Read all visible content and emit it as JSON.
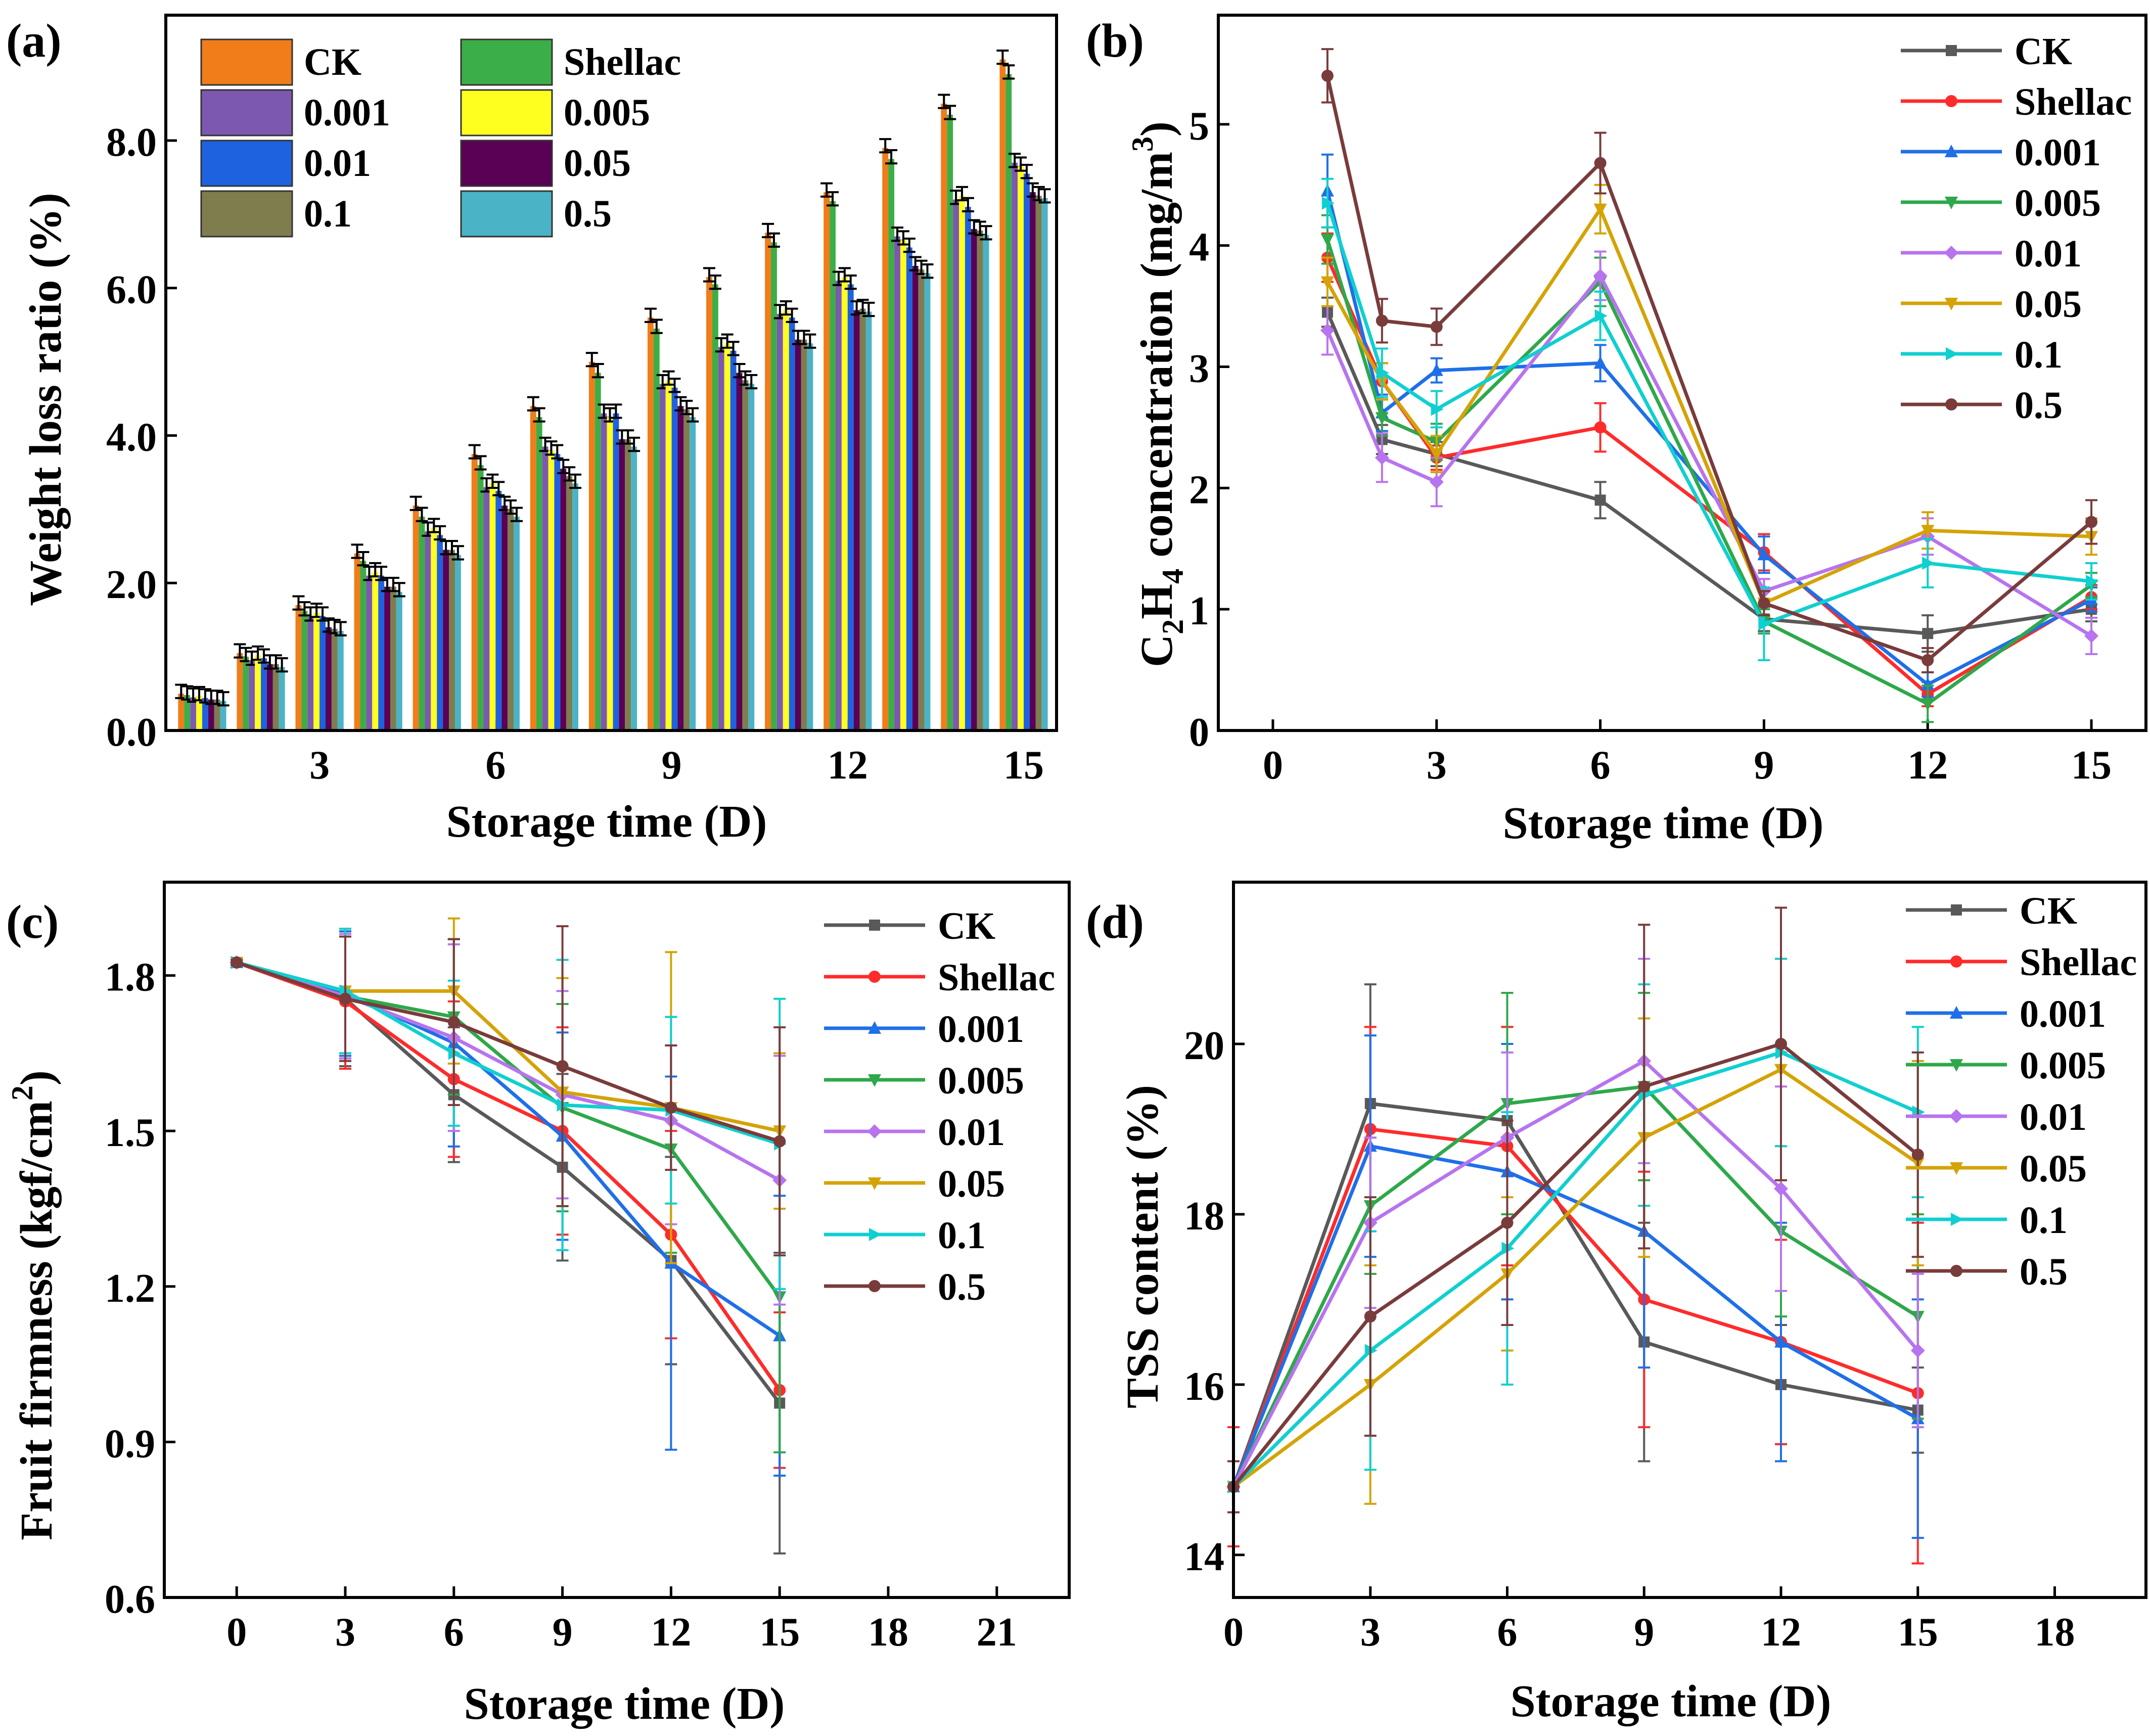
{
  "figure": {
    "panel_labels": [
      "(a)",
      "(b)",
      "(c)",
      "(d)"
    ]
  },
  "colors": {
    "CK": "#595959",
    "Shellac": "#ff2b2b",
    "0.001": "#1f6fe8",
    "0.005": "#2ea84a",
    "0.01": "#b774ee",
    "0.05": "#d4a306",
    "0.1": "#10cfd0",
    "0.5": "#7a3b3b"
  },
  "bar_colors": {
    "CK": "#f07c1a",
    "Shellac": "#3cae47",
    "0.001": "#7d58b0",
    "0.005": "#ffff1f",
    "0.01": "#1f62e0",
    "0.05": "#5a0055",
    "0.1": "#7f7d4e",
    "0.5": "#4bb3c6"
  },
  "chart_data": [
    {
      "panel": "(a)",
      "type": "bar",
      "title": "",
      "xlabel": "Storage time (D)",
      "ylabel": "Weight loss ratio (%)",
      "ylim": [
        0,
        9.7
      ],
      "yticks": [
        "0.0",
        "2.0",
        "4.0",
        "6.0",
        "8.0"
      ],
      "ytick_values": [
        0,
        2,
        4,
        6,
        8
      ],
      "xticks": [
        "3",
        "6",
        "9",
        "12",
        "15"
      ],
      "xtick_values": [
        3,
        6,
        9,
        12,
        15
      ],
      "categories": [
        "1",
        "2",
        "3",
        "4",
        "5",
        "6",
        "7",
        "8",
        "9",
        "10",
        "11",
        "12",
        "13",
        "14",
        "15"
      ],
      "legend_columns": [
        [
          "CK",
          "0.001",
          "0.01",
          "0.1"
        ],
        [
          "Shellac",
          "0.005",
          "0.05",
          "0.5"
        ]
      ],
      "error": 0.12,
      "series": [
        {
          "name": "CK",
          "values": [
            0.5,
            1.05,
            1.7,
            2.4,
            3.05,
            3.75,
            4.4,
            5.0,
            5.6,
            6.15,
            6.75,
            7.3,
            7.9,
            8.5,
            9.1
          ]
        },
        {
          "name": "Shellac",
          "values": [
            0.48,
            1.0,
            1.62,
            2.3,
            2.9,
            3.6,
            4.25,
            4.85,
            5.45,
            6.05,
            6.62,
            7.18,
            7.75,
            8.35,
            8.9
          ]
        },
        {
          "name": "0.001",
          "values": [
            0.45,
            0.95,
            1.55,
            2.1,
            2.7,
            3.3,
            3.85,
            4.3,
            4.7,
            5.2,
            5.65,
            6.1,
            6.7,
            7.2,
            7.7
          ]
        },
        {
          "name": "0.005",
          "values": [
            0.47,
            1.02,
            1.6,
            2.15,
            2.75,
            3.35,
            3.8,
            4.25,
            4.75,
            5.25,
            5.7,
            6.15,
            6.65,
            7.25,
            7.65
          ]
        },
        {
          "name": "0.01",
          "values": [
            0.44,
            0.98,
            1.55,
            2.1,
            2.65,
            3.25,
            3.75,
            4.3,
            4.65,
            5.15,
            5.6,
            6.05,
            6.55,
            7.1,
            7.55
          ]
        },
        {
          "name": "0.05",
          "values": [
            0.42,
            0.9,
            1.4,
            1.95,
            2.45,
            3.05,
            3.55,
            3.95,
            4.4,
            4.85,
            5.3,
            5.7,
            6.3,
            6.8,
            7.3
          ]
        },
        {
          "name": "0.1",
          "values": [
            0.42,
            0.9,
            1.38,
            1.95,
            2.45,
            3.0,
            3.45,
            3.95,
            4.35,
            4.75,
            5.3,
            5.72,
            6.25,
            6.78,
            7.25
          ]
        },
        {
          "name": "0.5",
          "values": [
            0.4,
            0.86,
            1.35,
            1.88,
            2.38,
            2.9,
            3.35,
            3.85,
            4.25,
            4.7,
            5.25,
            5.68,
            6.2,
            6.72,
            7.22
          ]
        }
      ]
    },
    {
      "panel": "(b)",
      "type": "line",
      "xlabel": "Storage time (D)",
      "ylabel": "C2H4 concentration (mg/m3)",
      "xlim": [
        -1,
        16
      ],
      "ylim": [
        0,
        5.9
      ],
      "xticks": [
        "0",
        "3",
        "6",
        "9",
        "12",
        "15"
      ],
      "xtick_values": [
        0,
        3,
        6,
        9,
        12,
        15
      ],
      "yticks": [
        "0",
        "1",
        "2",
        "3",
        "4",
        "5"
      ],
      "ytick_values": [
        0,
        1,
        2,
        3,
        4,
        5
      ],
      "x": [
        1,
        2,
        3,
        6,
        9,
        12,
        15
      ],
      "series": [
        {
          "name": "CK",
          "values": [
            3.45,
            2.4,
            2.28,
            1.9,
            0.92,
            0.8,
            1.0
          ],
          "errors": [
            0.12,
            0.12,
            0.1,
            0.15,
            0.1,
            0.15,
            0.1
          ]
        },
        {
          "name": "Shellac",
          "values": [
            3.9,
            2.88,
            2.25,
            2.5,
            1.47,
            0.3,
            1.1
          ],
          "errors": [
            0.2,
            0.15,
            0.1,
            0.2,
            0.15,
            0.1,
            0.1
          ]
        },
        {
          "name": "0.001",
          "values": [
            4.45,
            2.62,
            2.97,
            3.03,
            1.45,
            0.38,
            1.08
          ],
          "errors": [
            0.3,
            0.15,
            0.1,
            0.15,
            0.15,
            0.1,
            0.1
          ]
        },
        {
          "name": "0.005",
          "values": [
            4.05,
            2.58,
            2.38,
            3.7,
            0.9,
            0.22,
            1.2
          ],
          "errors": [
            0.2,
            0.15,
            0.15,
            0.2,
            0.1,
            0.15,
            0.1
          ]
        },
        {
          "name": "0.01",
          "values": [
            3.3,
            2.25,
            2.05,
            3.75,
            1.15,
            1.6,
            0.78
          ],
          "errors": [
            0.2,
            0.2,
            0.2,
            0.2,
            0.1,
            0.15,
            0.15
          ]
        },
        {
          "name": "0.05",
          "values": [
            3.7,
            2.88,
            2.28,
            4.3,
            1.05,
            1.65,
            1.6
          ],
          "errors": [
            0.2,
            0.15,
            0.15,
            0.2,
            0.1,
            0.15,
            0.15
          ]
        },
        {
          "name": "0.1",
          "values": [
            4.35,
            2.95,
            2.65,
            3.42,
            0.88,
            1.38,
            1.23
          ],
          "errors": [
            0.2,
            0.2,
            0.15,
            0.2,
            0.3,
            0.2,
            0.15
          ]
        },
        {
          "name": "0.5",
          "values": [
            5.4,
            3.38,
            3.33,
            4.68,
            1.05,
            0.58,
            1.72
          ],
          "errors": [
            0.22,
            0.18,
            0.15,
            0.25,
            0.1,
            0.1,
            0.18
          ]
        }
      ],
      "legend": [
        "CK",
        "Shellac",
        "0.001",
        "0.005",
        "0.01",
        "0.05",
        "0.1",
        "0.5"
      ]
    },
    {
      "panel": "(c)",
      "type": "line",
      "xlabel": "Storage time (D)",
      "ylabel": "Fruit firmness (kgf/cm2)",
      "xlim": [
        -2,
        23
      ],
      "ylim": [
        0.6,
        1.98
      ],
      "xticks": [
        "0",
        "3",
        "6",
        "9",
        "12",
        "15",
        "18",
        "21"
      ],
      "xtick_values": [
        0,
        3,
        6,
        9,
        12,
        15,
        18,
        21
      ],
      "yticks": [
        "0.6",
        "0.9",
        "1.2",
        "1.5",
        "1.8"
      ],
      "ytick_values": [
        0.6,
        0.9,
        1.2,
        1.5,
        1.8
      ],
      "x": [
        0,
        3,
        6,
        9,
        12,
        15
      ],
      "series": [
        {
          "name": "CK",
          "values": [
            1.825,
            1.755,
            1.57,
            1.43,
            1.25,
            0.975
          ],
          "errors": [
            0.005,
            0.13,
            0.13,
            0.18,
            0.2,
            0.29
          ]
        },
        {
          "name": "Shellac",
          "values": [
            1.825,
            1.75,
            1.6,
            1.5,
            1.3,
            1.0
          ],
          "errors": [
            0.005,
            0.13,
            0.15,
            0.2,
            0.2,
            0.15
          ]
        },
        {
          "name": "0.001",
          "values": [
            1.825,
            1.765,
            1.67,
            1.49,
            1.245,
            1.105
          ],
          "errors": [
            0.005,
            0.12,
            0.2,
            0.2,
            0.36,
            0.27
          ]
        },
        {
          "name": "0.005",
          "values": [
            1.825,
            1.76,
            1.72,
            1.545,
            1.465,
            1.18
          ],
          "errors": [
            0.005,
            0.12,
            0.15,
            0.2,
            0.2,
            0.3
          ]
        },
        {
          "name": "0.01",
          "values": [
            1.825,
            1.76,
            1.68,
            1.57,
            1.52,
            1.405
          ],
          "errors": [
            0.005,
            0.12,
            0.18,
            0.2,
            0.2,
            0.24
          ]
        },
        {
          "name": "0.05",
          "values": [
            1.825,
            1.77,
            1.77,
            1.575,
            1.545,
            1.5
          ],
          "errors": [
            0.005,
            0.12,
            0.14,
            0.22,
            0.3,
            0.15
          ]
        },
        {
          "name": "0.1",
          "values": [
            1.825,
            1.77,
            1.65,
            1.55,
            1.54,
            1.475
          ],
          "errors": [
            0.005,
            0.12,
            0.14,
            0.28,
            0.18,
            0.28
          ]
        },
        {
          "name": "0.5",
          "values": [
            1.825,
            1.755,
            1.71,
            1.625,
            1.545,
            1.48
          ],
          "errors": [
            0.005,
            0.12,
            0.16,
            0.27,
            0.12,
            0.22
          ]
        }
      ],
      "legend": [
        "CK",
        "Shellac",
        "0.001",
        "0.005",
        "0.01",
        "0.05",
        "0.1",
        "0.5"
      ]
    },
    {
      "panel": "(d)",
      "type": "line",
      "xlabel": "Storage time (D)",
      "ylabel": "TSS content (%)",
      "xlim": [
        0,
        20
      ],
      "ylim": [
        13.5,
        21.9
      ],
      "xticks": [
        "0",
        "3",
        "6",
        "9",
        "12",
        "15",
        "18"
      ],
      "xtick_values": [
        0,
        3,
        6,
        9,
        12,
        15,
        18
      ],
      "yticks": [
        "14",
        "16",
        "18",
        "20"
      ],
      "ytick_values": [
        14,
        16,
        18,
        20
      ],
      "x": [
        0,
        3,
        6,
        9,
        12,
        15
      ],
      "series": [
        {
          "name": "CK",
          "values": [
            14.8,
            19.3,
            19.1,
            16.5,
            16.0,
            15.7
          ],
          "errors": [
            0.3,
            1.4,
            1.1,
            1.4,
            0.7,
            0.5
          ]
        },
        {
          "name": "Shellac",
          "values": [
            14.8,
            19.0,
            18.8,
            17.0,
            16.5,
            15.9
          ],
          "errors": [
            0.7,
            1.2,
            1.4,
            1.5,
            1.2,
            2.0
          ]
        },
        {
          "name": "0.001",
          "values": [
            14.8,
            18.8,
            18.5,
            17.8,
            16.5,
            15.6
          ],
          "errors": [
            0.3,
            1.3,
            1.5,
            1.6,
            1.4,
            1.4
          ]
        },
        {
          "name": "0.005",
          "values": [
            14.8,
            18.1,
            19.3,
            19.5,
            17.8,
            16.8
          ],
          "errors": [
            0.3,
            0.8,
            1.3,
            1.1,
            1.0,
            1.2
          ]
        },
        {
          "name": "0.01",
          "values": [
            14.8,
            17.9,
            18.9,
            19.8,
            18.3,
            16.4
          ],
          "errors": [
            0.3,
            1.0,
            1.0,
            1.2,
            1.2,
            0.9
          ]
        },
        {
          "name": "0.05",
          "values": [
            14.8,
            16.0,
            17.3,
            18.9,
            19.7,
            18.6
          ],
          "errors": [
            0.3,
            1.4,
            0.9,
            1.4,
            1.3,
            1.2
          ]
        },
        {
          "name": "0.1",
          "values": [
            14.8,
            16.4,
            17.6,
            19.4,
            19.9,
            19.2
          ],
          "errors": [
            0.3,
            1.4,
            1.6,
            1.3,
            1.1,
            1.0
          ]
        },
        {
          "name": "0.5",
          "values": [
            14.8,
            16.8,
            17.9,
            19.5,
            20.0,
            18.7
          ],
          "errors": [
            0.3,
            1.4,
            1.2,
            1.9,
            1.6,
            1.2
          ]
        }
      ],
      "legend": [
        "CK",
        "Shellac",
        "0.001",
        "0.005",
        "0.01",
        "0.05",
        "0.1",
        "0.5"
      ]
    }
  ]
}
